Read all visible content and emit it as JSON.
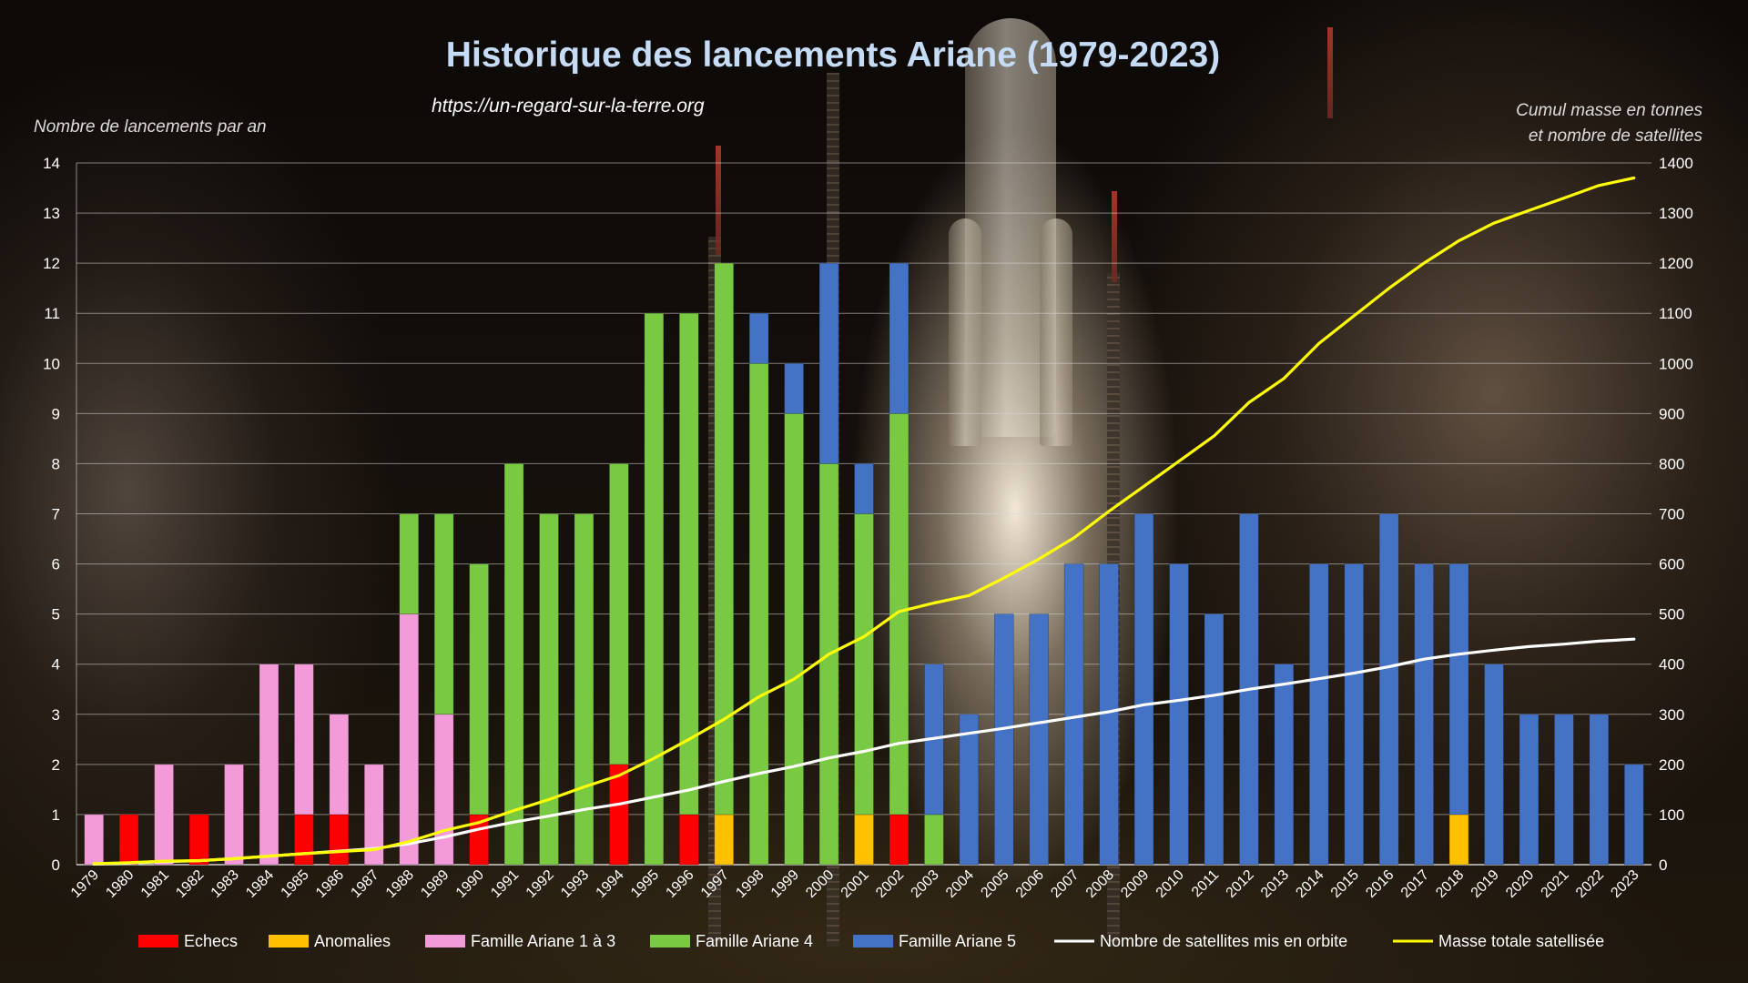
{
  "colors": {
    "echecs": "#ff0000",
    "anomalies": "#ffc000",
    "ariane13": "#f29bd8",
    "ariane4": "#7ac943",
    "ariane5": "#4472c4",
    "satellites": "#ffffff",
    "masse": "#ffff00",
    "title": "#c6dcf6"
  },
  "chart_data": {
    "type": "bar",
    "title": "Historique des lancements Ariane (1979-2023)",
    "subtitle": "https://un-regard-sur-la-terre.org",
    "ylabel": "Nombre de lancements par an",
    "y2label": [
      "Cumul masse en tonnes",
      "et nombre de satellites"
    ],
    "ylim": [
      0,
      14
    ],
    "y2lim": [
      0,
      1400
    ],
    "yticks": [
      "0",
      "1",
      "2",
      "3",
      "4",
      "5",
      "6",
      "7",
      "8",
      "9",
      "10",
      "11",
      "12",
      "13",
      "14"
    ],
    "y2ticks": [
      "0",
      "100",
      "200",
      "300",
      "400",
      "500",
      "600",
      "700",
      "800",
      "900",
      "1000",
      "1100",
      "1200",
      "1300",
      "1400"
    ],
    "grid": true,
    "legend_position": "bottom",
    "categories": [
      "1979",
      "1980",
      "1981",
      "1982",
      "1983",
      "1984",
      "1985",
      "1986",
      "1987",
      "1988",
      "1989",
      "1990",
      "1991",
      "1992",
      "1993",
      "1994",
      "1995",
      "1996",
      "1997",
      "1998",
      "1999",
      "2000",
      "2001",
      "2002",
      "2003",
      "2004",
      "2005",
      "2006",
      "2007",
      "2008",
      "2009",
      "2010",
      "2011",
      "2012",
      "2013",
      "2014",
      "2015",
      "2016",
      "2017",
      "2018",
      "2019",
      "2020",
      "2021",
      "2022",
      "2023"
    ],
    "series": [
      {
        "name": "Echecs",
        "kind": "bar",
        "values": [
          0,
          1,
          0,
          1,
          0,
          0,
          1,
          1,
          0,
          0,
          0,
          1,
          0,
          0,
          0,
          2,
          0,
          1,
          0,
          0,
          0,
          0,
          0,
          1,
          0,
          0,
          0,
          0,
          0,
          0,
          0,
          0,
          0,
          0,
          0,
          0,
          0,
          0,
          0,
          0,
          0,
          0,
          0,
          0,
          0
        ]
      },
      {
        "name": "Anomalies",
        "kind": "bar",
        "values": [
          0,
          0,
          0,
          0,
          0,
          0,
          0,
          0,
          0,
          0,
          0,
          0,
          0,
          0,
          0,
          0,
          0,
          0,
          1,
          0,
          0,
          0,
          1,
          0,
          0,
          0,
          0,
          0,
          0,
          0,
          0,
          0,
          0,
          0,
          0,
          0,
          0,
          0,
          0,
          1,
          0,
          0,
          0,
          0,
          0
        ]
      },
      {
        "name": "Famille Ariane 1 à 3",
        "kind": "bar",
        "values": [
          1,
          0,
          2,
          0,
          2,
          4,
          3,
          2,
          2,
          5,
          3,
          0,
          0,
          0,
          0,
          0,
          0,
          0,
          0,
          0,
          0,
          0,
          0,
          0,
          0,
          0,
          0,
          0,
          0,
          0,
          0,
          0,
          0,
          0,
          0,
          0,
          0,
          0,
          0,
          0,
          0,
          0,
          0,
          0,
          0
        ]
      },
      {
        "name": "Famille Ariane 4",
        "kind": "bar",
        "values": [
          0,
          0,
          0,
          0,
          0,
          0,
          0,
          0,
          0,
          2,
          4,
          5,
          8,
          7,
          7,
          6,
          11,
          10,
          11,
          10,
          9,
          8,
          6,
          8,
          1,
          0,
          0,
          0,
          0,
          0,
          0,
          0,
          0,
          0,
          0,
          0,
          0,
          0,
          0,
          0,
          0,
          0,
          0,
          0,
          0
        ]
      },
      {
        "name": "Famille Ariane 5",
        "kind": "bar",
        "values": [
          0,
          0,
          0,
          0,
          0,
          0,
          0,
          0,
          0,
          0,
          0,
          0,
          0,
          0,
          0,
          0,
          0,
          0,
          0,
          1,
          1,
          4,
          1,
          3,
          3,
          3,
          5,
          5,
          6,
          6,
          7,
          6,
          5,
          7,
          4,
          6,
          6,
          7,
          6,
          5,
          4,
          3,
          3,
          3,
          2
        ]
      },
      {
        "name": "Nombre de satellites mis en orbite",
        "kind": "line",
        "axis": "right",
        "values": [
          1,
          3,
          6,
          8,
          12,
          17,
          22,
          27,
          32,
          42,
          55,
          71,
          85,
          97,
          110,
          121,
          135,
          149,
          166,
          182,
          196,
          213,
          226,
          242,
          252,
          262,
          272,
          283,
          294,
          305,
          319,
          328,
          338,
          350,
          360,
          371,
          382,
          395,
          410,
          420,
          428,
          435,
          440,
          446,
          450
        ]
      },
      {
        "name": "Masse totale satellisée",
        "kind": "line",
        "axis": "right",
        "values": [
          2,
          4,
          7,
          8,
          12,
          17,
          22,
          26,
          30,
          46,
          68,
          84,
          108,
          130,
          155,
          178,
          212,
          250,
          290,
          335,
          370,
          420,
          455,
          505,
          522,
          537,
          572,
          610,
          652,
          705,
          755,
          805,
          855,
          922,
          970,
          1040,
          1095,
          1150,
          1200,
          1245,
          1280,
          1305,
          1330,
          1355,
          1370
        ]
      }
    ]
  }
}
